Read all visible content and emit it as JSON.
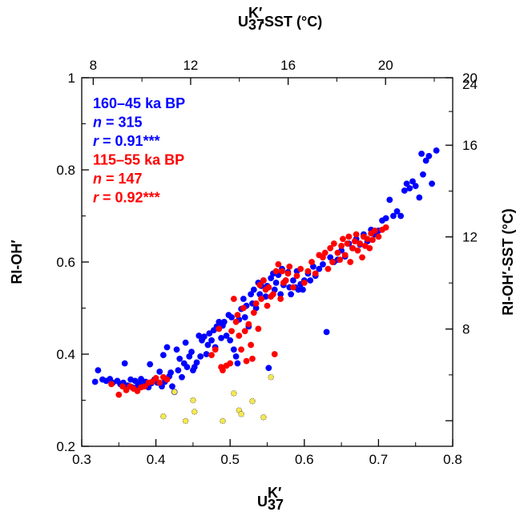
{
  "chart_data": {
    "type": "scatter",
    "title": "",
    "xlabel": "U",
    "xlabel_sup": "K′",
    "xlabel_sub": "37",
    "ylabel": "RI-OH′",
    "top_axis_label": "-SST (°C)",
    "top_axis_label_prefix": "U",
    "right_axis_label": "RI-OH′-SST (°C)",
    "xlim": [
      0.3,
      0.8
    ],
    "ylim": [
      0.2,
      1.0
    ],
    "x_ticks": [
      0.3,
      0.4,
      0.5,
      0.6,
      0.7,
      0.8
    ],
    "x_tick_labels": [
      "0.3",
      "0.4",
      "0.5",
      "0.6",
      "0.7",
      "0.8"
    ],
    "y_ticks": [
      0.2,
      0.4,
      0.6,
      0.8,
      1.0
    ],
    "y_tick_labels": [
      "0.2",
      "0.4",
      "0.6",
      "0.8",
      "1"
    ],
    "top_ticks_at_x": [
      0.3155,
      0.4468,
      0.5782,
      0.7095
    ],
    "top_tick_labels": [
      "8",
      "12",
      "16",
      "20"
    ],
    "right_ticks_at_y": [
      0.3532,
      0.5533,
      0.7533,
      0.9533
    ],
    "right_tick_labels": [
      "8",
      "12",
      "16",
      "20",
      "24"
    ],
    "right_ticks_at_y_full": [
      0.2555,
      0.4545,
      0.6545,
      0.8535,
      1.0
    ],
    "grid": false,
    "annotations": [
      {
        "text": "160–45 ka BP",
        "color": "#0000ff"
      },
      {
        "text": "n = 315",
        "italic_prefix": "n",
        "rest": " = 315",
        "color": "#0000ff"
      },
      {
        "text": "r = 0.91***",
        "italic_prefix": "r",
        "rest": " = 0.91***",
        "color": "#0000ff"
      },
      {
        "text": "115–55 ka BP",
        "color": "#ff0000"
      },
      {
        "text": "n = 147",
        "italic_prefix": "n",
        "rest": " = 147",
        "color": "#ff0000"
      },
      {
        "text": "r = 0.92***",
        "italic_prefix": "r",
        "rest": " = 0.92***",
        "color": "#ff0000"
      }
    ],
    "series": [
      {
        "color": "#0000ff",
        "points": [
          [
            0.318,
            0.34
          ],
          [
            0.322,
            0.365
          ],
          [
            0.328,
            0.345
          ],
          [
            0.333,
            0.342
          ],
          [
            0.338,
            0.346
          ],
          [
            0.342,
            0.338
          ],
          [
            0.348,
            0.342
          ],
          [
            0.352,
            0.335
          ],
          [
            0.356,
            0.338
          ],
          [
            0.358,
            0.38
          ],
          [
            0.362,
            0.332
          ],
          [
            0.366,
            0.345
          ],
          [
            0.368,
            0.328
          ],
          [
            0.372,
            0.342
          ],
          [
            0.375,
            0.33
          ],
          [
            0.378,
            0.336
          ],
          [
            0.38,
            0.346
          ],
          [
            0.382,
            0.33
          ],
          [
            0.386,
            0.34
          ],
          [
            0.39,
            0.328
          ],
          [
            0.392,
            0.378
          ],
          [
            0.394,
            0.337
          ],
          [
            0.398,
            0.345
          ],
          [
            0.402,
            0.338
          ],
          [
            0.405,
            0.362
          ],
          [
            0.408,
            0.33
          ],
          [
            0.41,
            0.398
          ],
          [
            0.412,
            0.34
          ],
          [
            0.415,
            0.415
          ],
          [
            0.418,
            0.352
          ],
          [
            0.42,
            0.36
          ],
          [
            0.422,
            0.33
          ],
          [
            0.425,
            0.318
          ],
          [
            0.428,
            0.41
          ],
          [
            0.43,
            0.365
          ],
          [
            0.432,
            0.39
          ],
          [
            0.435,
            0.35
          ],
          [
            0.438,
            0.38
          ],
          [
            0.44,
            0.425
          ],
          [
            0.442,
            0.372
          ],
          [
            0.445,
            0.395
          ],
          [
            0.448,
            0.405
          ],
          [
            0.45,
            0.365
          ],
          [
            0.452,
            0.372
          ],
          [
            0.455,
            0.382
          ],
          [
            0.458,
            0.44
          ],
          [
            0.46,
            0.395
          ],
          [
            0.462,
            0.43
          ],
          [
            0.465,
            0.438
          ],
          [
            0.468,
            0.4
          ],
          [
            0.47,
            0.42
          ],
          [
            0.472,
            0.445
          ],
          [
            0.475,
            0.43
          ],
          [
            0.478,
            0.452
          ],
          [
            0.48,
            0.415
          ],
          [
            0.482,
            0.46
          ],
          [
            0.485,
            0.47
          ],
          [
            0.488,
            0.435
          ],
          [
            0.49,
            0.462
          ],
          [
            0.492,
            0.47
          ],
          [
            0.495,
            0.44
          ],
          [
            0.498,
            0.485
          ],
          [
            0.5,
            0.43
          ],
          [
            0.502,
            0.48
          ],
          [
            0.505,
            0.41
          ],
          [
            0.508,
            0.395
          ],
          [
            0.51,
            0.38
          ],
          [
            0.512,
            0.475
          ],
          [
            0.515,
            0.498
          ],
          [
            0.518,
            0.52
          ],
          [
            0.52,
            0.48
          ],
          [
            0.522,
            0.505
          ],
          [
            0.525,
            0.46
          ],
          [
            0.528,
            0.53
          ],
          [
            0.53,
            0.51
          ],
          [
            0.532,
            0.54
          ],
          [
            0.535,
            0.5
          ],
          [
            0.538,
            0.555
          ],
          [
            0.54,
            0.53
          ],
          [
            0.542,
            0.548
          ],
          [
            0.545,
            0.56
          ],
          [
            0.548,
            0.525
          ],
          [
            0.55,
            0.548
          ],
          [
            0.552,
            0.37
          ],
          [
            0.555,
            0.565
          ],
          [
            0.558,
            0.575
          ],
          [
            0.56,
            0.54
          ],
          [
            0.562,
            0.555
          ],
          [
            0.565,
            0.572
          ],
          [
            0.568,
            0.53
          ],
          [
            0.57,
            0.585
          ],
          [
            0.572,
            0.55
          ],
          [
            0.575,
            0.56
          ],
          [
            0.578,
            0.578
          ],
          [
            0.58,
            0.545
          ],
          [
            0.582,
            0.53
          ],
          [
            0.585,
            0.56
          ],
          [
            0.588,
            0.545
          ],
          [
            0.59,
            0.58
          ],
          [
            0.592,
            0.54
          ],
          [
            0.595,
            0.552
          ],
          [
            0.598,
            0.54
          ],
          [
            0.6,
            0.56
          ],
          [
            0.605,
            0.575
          ],
          [
            0.608,
            0.56
          ],
          [
            0.612,
            0.59
          ],
          [
            0.615,
            0.57
          ],
          [
            0.62,
            0.585
          ],
          [
            0.625,
            0.595
          ],
          [
            0.63,
            0.448
          ],
          [
            0.635,
            0.61
          ],
          [
            0.64,
            0.6
          ],
          [
            0.645,
            0.605
          ],
          [
            0.65,
            0.625
          ],
          [
            0.655,
            0.612
          ],
          [
            0.66,
            0.64
          ],
          [
            0.665,
            0.63
          ],
          [
            0.67,
            0.65
          ],
          [
            0.675,
            0.638
          ],
          [
            0.68,
            0.66
          ],
          [
            0.685,
            0.645
          ],
          [
            0.69,
            0.67
          ],
          [
            0.695,
            0.66
          ],
          [
            0.7,
            0.668
          ],
          [
            0.705,
            0.69
          ],
          [
            0.71,
            0.695
          ],
          [
            0.715,
            0.735
          ],
          [
            0.72,
            0.7
          ],
          [
            0.725,
            0.71
          ],
          [
            0.73,
            0.7
          ],
          [
            0.735,
            0.755
          ],
          [
            0.738,
            0.77
          ],
          [
            0.742,
            0.76
          ],
          [
            0.746,
            0.775
          ],
          [
            0.75,
            0.765
          ],
          [
            0.755,
            0.74
          ],
          [
            0.758,
            0.835
          ],
          [
            0.76,
            0.79
          ],
          [
            0.764,
            0.82
          ],
          [
            0.768,
            0.83
          ],
          [
            0.772,
            0.77
          ],
          [
            0.778,
            0.842
          ]
        ]
      },
      {
        "color": "#ff0000",
        "points": [
          [
            0.34,
            0.335
          ],
          [
            0.35,
            0.312
          ],
          [
            0.355,
            0.33
          ],
          [
            0.36,
            0.322
          ],
          [
            0.365,
            0.33
          ],
          [
            0.37,
            0.325
          ],
          [
            0.375,
            0.32
          ],
          [
            0.38,
            0.328
          ],
          [
            0.385,
            0.33
          ],
          [
            0.39,
            0.338
          ],
          [
            0.395,
            0.34
          ],
          [
            0.4,
            0.348
          ],
          [
            0.405,
            0.338
          ],
          [
            0.41,
            0.35
          ],
          [
            0.415,
            0.345
          ],
          [
            0.475,
            0.398
          ],
          [
            0.48,
            0.41
          ],
          [
            0.485,
            0.455
          ],
          [
            0.488,
            0.372
          ],
          [
            0.49,
            0.365
          ],
          [
            0.495,
            0.375
          ],
          [
            0.5,
            0.38
          ],
          [
            0.502,
            0.45
          ],
          [
            0.505,
            0.52
          ],
          [
            0.508,
            0.47
          ],
          [
            0.51,
            0.485
          ],
          [
            0.512,
            0.44
          ],
          [
            0.515,
            0.41
          ],
          [
            0.518,
            0.5
          ],
          [
            0.52,
            0.45
          ],
          [
            0.522,
            0.385
          ],
          [
            0.525,
            0.465
          ],
          [
            0.528,
            0.42
          ],
          [
            0.53,
            0.39
          ],
          [
            0.532,
            0.49
          ],
          [
            0.535,
            0.51
          ],
          [
            0.538,
            0.455
          ],
          [
            0.54,
            0.55
          ],
          [
            0.542,
            0.52
          ],
          [
            0.545,
            0.56
          ],
          [
            0.548,
            0.54
          ],
          [
            0.55,
            0.505
          ],
          [
            0.552,
            0.545
          ],
          [
            0.555,
            0.525
          ],
          [
            0.558,
            0.53
          ],
          [
            0.56,
            0.4
          ],
          [
            0.562,
            0.58
          ],
          [
            0.565,
            0.595
          ],
          [
            0.568,
            0.52
          ],
          [
            0.57,
            0.58
          ],
          [
            0.572,
            0.555
          ],
          [
            0.575,
            0.56
          ],
          [
            0.578,
            0.575
          ],
          [
            0.58,
            0.59
          ],
          [
            0.585,
            0.545
          ],
          [
            0.59,
            0.57
          ],
          [
            0.595,
            0.585
          ],
          [
            0.6,
            0.555
          ],
          [
            0.605,
            0.58
          ],
          [
            0.61,
            0.6
          ],
          [
            0.615,
            0.575
          ],
          [
            0.62,
            0.615
          ],
          [
            0.625,
            0.61
          ],
          [
            0.628,
            0.62
          ],
          [
            0.632,
            0.585
          ],
          [
            0.635,
            0.63
          ],
          [
            0.638,
            0.6
          ],
          [
            0.64,
            0.64
          ],
          [
            0.645,
            0.62
          ],
          [
            0.648,
            0.605
          ],
          [
            0.65,
            0.635
          ],
          [
            0.652,
            0.65
          ],
          [
            0.655,
            0.615
          ],
          [
            0.658,
            0.64
          ],
          [
            0.66,
            0.655
          ],
          [
            0.662,
            0.6
          ],
          [
            0.665,
            0.63
          ],
          [
            0.668,
            0.645
          ],
          [
            0.67,
            0.66
          ],
          [
            0.672,
            0.625
          ],
          [
            0.675,
            0.64
          ],
          [
            0.678,
            0.61
          ],
          [
            0.68,
            0.655
          ],
          [
            0.682,
            0.635
          ],
          [
            0.685,
            0.65
          ],
          [
            0.688,
            0.63
          ],
          [
            0.69,
            0.662
          ],
          [
            0.692,
            0.648
          ],
          [
            0.695,
            0.668
          ],
          [
            0.7,
            0.655
          ],
          [
            0.705,
            0.67
          ],
          [
            0.71,
            0.675
          ]
        ]
      },
      {
        "color": "#f5e94a",
        "edge": "#555555",
        "points": [
          [
            0.41,
            0.265
          ],
          [
            0.425,
            0.318
          ],
          [
            0.44,
            0.255
          ],
          [
            0.45,
            0.3
          ],
          [
            0.452,
            0.275
          ],
          [
            0.49,
            0.255
          ],
          [
            0.505,
            0.315
          ],
          [
            0.512,
            0.278
          ],
          [
            0.515,
            0.27
          ],
          [
            0.53,
            0.298
          ],
          [
            0.545,
            0.263
          ],
          [
            0.555,
            0.35
          ]
        ]
      }
    ]
  }
}
